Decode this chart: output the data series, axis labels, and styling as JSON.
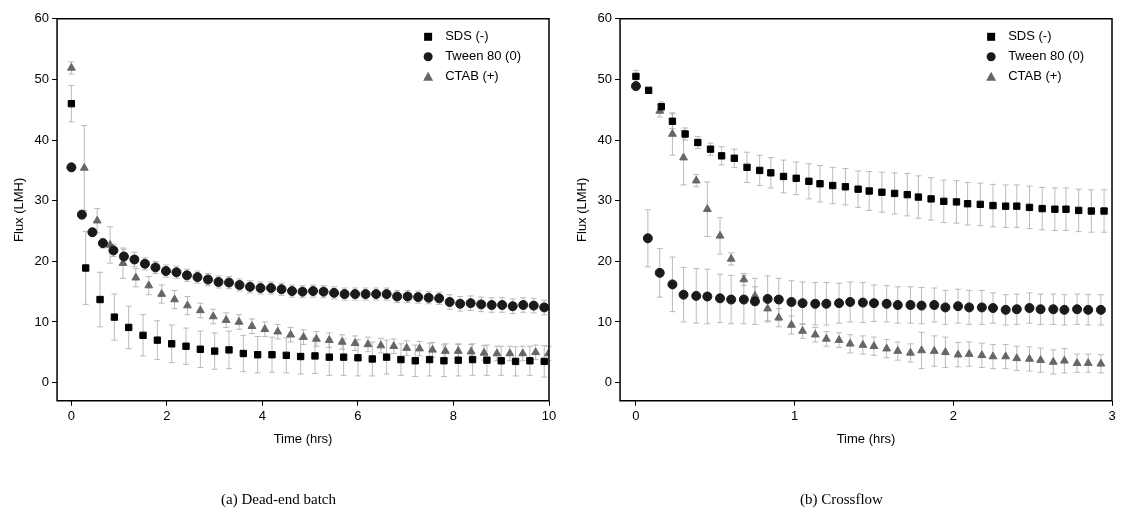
{
  "chart_data": [
    {
      "type": "scatter",
      "title": "(a) Dead-end batch",
      "xlabel": "Time (hrs)",
      "ylabel": "Flux (LMH)",
      "xlim": [
        -0.3,
        10
      ],
      "ylim": [
        -3,
        60
      ],
      "xticks": [
        0,
        2,
        4,
        6,
        8,
        10
      ],
      "yticks": [
        0,
        10,
        20,
        30,
        40,
        50,
        60
      ],
      "grid": false,
      "legend": "top right",
      "series": [
        {
          "name": "SDS (-)",
          "color": "#000000",
          "marker": "square",
          "x": [
            0,
            0.3,
            0.6,
            0.9,
            1.2,
            1.5,
            1.8,
            2.1,
            2.4,
            2.7,
            3,
            3.3,
            3.6,
            3.9,
            4.2,
            4.5,
            4.8,
            5.1,
            5.4,
            5.7,
            6,
            6.3,
            6.6,
            6.9,
            7.2,
            7.5,
            7.8,
            8.1,
            8.4,
            8.7,
            9,
            9.3,
            9.6,
            9.9
          ],
          "values": [
            46.0,
            18.9,
            13.7,
            10.8,
            9.1,
            7.8,
            7.0,
            6.4,
            6.0,
            5.5,
            5.2,
            5.4,
            4.8,
            4.6,
            4.6,
            4.5,
            4.3,
            4.4,
            4.2,
            4.2,
            4.1,
            3.9,
            4.2,
            3.8,
            3.6,
            3.8,
            3.6,
            3.7,
            3.8,
            3.7,
            3.6,
            3.5,
            3.6,
            3.5
          ],
          "errors": [
            3,
            6,
            4.5,
            3.8,
            3.5,
            3.4,
            3.2,
            3.1,
            3,
            3,
            3,
            3.1,
            3,
            3,
            2.9,
            2.9,
            2.9,
            2.9,
            3,
            3,
            3,
            2.8,
            2.8,
            2.6,
            2.6,
            2.7,
            2.6,
            2.6,
            2.6,
            2.5,
            2.4,
            2.4,
            2.4,
            2.6
          ]
        },
        {
          "name": "Tween 80 (0)",
          "color": "#1a1a1a",
          "marker": "circle",
          "x": [
            0,
            0.22,
            0.44,
            0.66,
            0.88,
            1.1,
            1.32,
            1.54,
            1.76,
            1.98,
            2.2,
            2.42,
            2.64,
            2.86,
            3.08,
            3.3,
            3.52,
            3.74,
            3.96,
            4.18,
            4.4,
            4.62,
            4.84,
            5.06,
            5.28,
            5.5,
            5.72,
            5.94,
            6.16,
            6.38,
            6.6,
            6.82,
            7.04,
            7.26,
            7.48,
            7.7,
            7.92,
            8.14,
            8.36,
            8.58,
            8.8,
            9.02,
            9.24,
            9.46,
            9.68,
            9.9
          ],
          "values": [
            35.5,
            27.7,
            24.8,
            23.0,
            21.8,
            20.8,
            20.3,
            19.6,
            19.0,
            18.4,
            18.2,
            17.7,
            17.4,
            17.0,
            16.6,
            16.5,
            16.1,
            15.8,
            15.6,
            15.6,
            15.4,
            15.1,
            15.0,
            15.1,
            15.0,
            14.8,
            14.6,
            14.6,
            14.6,
            14.6,
            14.6,
            14.2,
            14.2,
            14.1,
            14.0,
            13.9,
            13.3,
            13.0,
            13.1,
            12.9,
            12.8,
            12.8,
            12.6,
            12.8,
            12.7,
            12.4
          ],
          "errors": [
            0.6,
            0.6,
            0.6,
            0.8,
            1,
            1.2,
            1.2,
            1,
            1,
            1,
            1,
            1,
            1,
            1,
            1,
            1,
            1,
            1,
            1,
            1,
            1,
            1,
            1,
            1,
            1,
            1,
            1,
            1,
            1,
            1,
            1,
            1,
            1,
            1,
            1,
            1,
            1.2,
            1.2,
            1.2,
            1.2,
            1.2,
            1.2,
            1.2,
            1.2,
            1.2,
            1.2
          ]
        },
        {
          "name": "CTAB (+)",
          "color": "#666666",
          "marker": "triangle",
          "x": [
            0,
            0.27,
            0.54,
            0.81,
            1.08,
            1.35,
            1.62,
            1.89,
            2.16,
            2.43,
            2.7,
            2.97,
            3.24,
            3.51,
            3.78,
            4.05,
            4.32,
            4.59,
            4.86,
            5.13,
            5.4,
            5.67,
            5.94,
            6.21,
            6.48,
            6.75,
            7.02,
            7.29,
            7.56,
            7.83,
            8.1,
            8.37,
            8.64,
            8.91,
            9.18,
            9.45,
            9.72,
            9.99
          ],
          "values": [
            51.9,
            35.4,
            26.7,
            22.7,
            19.7,
            17.3,
            16.0,
            14.6,
            13.7,
            12.7,
            11.9,
            10.9,
            10.3,
            10.0,
            9.3,
            8.8,
            8.4,
            7.9,
            7.5,
            7.2,
            7.0,
            6.7,
            6.5,
            6.3,
            6.1,
            6.0,
            5.7,
            5.6,
            5.4,
            5.2,
            5.2,
            5.1,
            4.9,
            4.8,
            4.8,
            4.8,
            5.0,
            4.8
          ],
          "errors": [
            1,
            7,
            2,
            3,
            2.5,
            1.5,
            1.5,
            1.5,
            1.5,
            1.5,
            1.2,
            1.2,
            1.2,
            1.2,
            1.2,
            1.2,
            1.2,
            1.2,
            1.2,
            1.2,
            1.2,
            1.2,
            1.2,
            1.2,
            1.2,
            1.2,
            1.2,
            1.2,
            1.2,
            1.2,
            1.2,
            1.2,
            1.2,
            1.2,
            1.2,
            1.2,
            1.2,
            1.2
          ]
        }
      ]
    },
    {
      "type": "scatter",
      "title": "(b) Crossflow",
      "xlabel": "Time (hrs)",
      "ylabel": "Flux (LMH)",
      "xlim": [
        -0.1,
        3
      ],
      "ylim": [
        -3,
        60
      ],
      "xticks": [
        0,
        1,
        2,
        3
      ],
      "yticks": [
        0,
        10,
        20,
        30,
        40,
        50,
        60
      ],
      "grid": false,
      "legend": "top right",
      "series": [
        {
          "name": "SDS (-)",
          "color": "#000000",
          "marker": "square",
          "x": [
            0,
            0.08,
            0.16,
            0.23,
            0.31,
            0.39,
            0.47,
            0.54,
            0.62,
            0.7,
            0.78,
            0.85,
            0.93,
            1.01,
            1.09,
            1.16,
            1.24,
            1.32,
            1.4,
            1.47,
            1.55,
            1.63,
            1.71,
            1.78,
            1.86,
            1.94,
            2.02,
            2.09,
            2.17,
            2.25,
            2.33,
            2.4,
            2.48,
            2.56,
            2.64,
            2.71,
            2.79,
            2.87,
            2.95
          ],
          "values": [
            50.5,
            48.2,
            45.5,
            43.1,
            41.0,
            39.6,
            38.5,
            37.4,
            37.0,
            35.5,
            35.0,
            34.6,
            34.0,
            33.7,
            33.2,
            32.8,
            32.5,
            32.3,
            31.9,
            31.6,
            31.4,
            31.2,
            31.0,
            30.6,
            30.3,
            29.9,
            29.8,
            29.5,
            29.4,
            29.2,
            29.1,
            29.1,
            28.9,
            28.7,
            28.6,
            28.6,
            28.4,
            28.3,
            28.3
          ],
          "errors": [
            1,
            0.5,
            0.8,
            1.2,
            1,
            1,
            1,
            1.5,
            1.5,
            2.5,
            2.5,
            2.5,
            2.7,
            2.7,
            2.9,
            3,
            3,
            3,
            3,
            3.2,
            3.3,
            3.4,
            3.5,
            3.5,
            3.5,
            3.5,
            3.5,
            3.5,
            3.5,
            3.5,
            3.5,
            3.5,
            3.5,
            3.5,
            3.5,
            3.5,
            3.5,
            3.5,
            3.5
          ]
        },
        {
          "name": "Tween 80 (0)",
          "color": "#1a1a1a",
          "marker": "circle",
          "x": [
            0,
            0.075,
            0.15,
            0.23,
            0.3,
            0.38,
            0.45,
            0.53,
            0.6,
            0.68,
            0.75,
            0.83,
            0.9,
            0.98,
            1.05,
            1.13,
            1.2,
            1.28,
            1.35,
            1.43,
            1.5,
            1.58,
            1.65,
            1.73,
            1.8,
            1.88,
            1.95,
            2.03,
            2.1,
            2.18,
            2.25,
            2.33,
            2.4,
            2.48,
            2.55,
            2.63,
            2.7,
            2.78,
            2.85,
            2.93
          ],
          "values": [
            48.9,
            23.8,
            18.1,
            16.2,
            14.5,
            14.3,
            14.2,
            13.9,
            13.7,
            13.7,
            13.4,
            13.8,
            13.7,
            13.3,
            13.1,
            13.0,
            13.0,
            13.1,
            13.3,
            13.2,
            13.1,
            13.0,
            12.8,
            12.8,
            12.7,
            12.8,
            12.4,
            12.6,
            12.4,
            12.4,
            12.3,
            12.0,
            12.1,
            12.3,
            12.1,
            12.1,
            12.0,
            12.1,
            12.0,
            12.0
          ],
          "errors": [
            null,
            4.7,
            4,
            4.5,
            4.5,
            4.5,
            4.5,
            4,
            4,
            4,
            3.8,
            3.8,
            3.5,
            3.5,
            3.5,
            3.5,
            3.5,
            3.3,
            3.3,
            3.3,
            3,
            3,
            3,
            3,
            3,
            2.8,
            2.8,
            2.8,
            2.8,
            2.8,
            2.5,
            2.5,
            2.5,
            2.5,
            2.5,
            2.5,
            2.5,
            2.5,
            2.5,
            2.5
          ]
        },
        {
          "name": "CTAB (+)",
          "color": "#666666",
          "marker": "triangle",
          "x": [
            0.15,
            0.23,
            0.3,
            0.38,
            0.45,
            0.53,
            0.6,
            0.68,
            0.75,
            0.83,
            0.9,
            0.98,
            1.05,
            1.13,
            1.2,
            1.28,
            1.35,
            1.43,
            1.5,
            1.58,
            1.65,
            1.73,
            1.8,
            1.88,
            1.95,
            2.03,
            2.1,
            2.18,
            2.25,
            2.33,
            2.4,
            2.48,
            2.55,
            2.63,
            2.7,
            2.78,
            2.85,
            2.93
          ],
          "values": [
            44.8,
            41.0,
            37.1,
            33.3,
            28.6,
            24.2,
            20.4,
            17.0,
            14.3,
            12.2,
            10.7,
            9.5,
            8.5,
            7.9,
            7.2,
            7.0,
            6.4,
            6.2,
            6.0,
            5.6,
            5.2,
            4.9,
            5.3,
            5.2,
            5.0,
            4.6,
            4.7,
            4.5,
            4.3,
            4.3,
            4.0,
            3.9,
            3.7,
            3.4,
            3.6,
            3.2,
            3.2,
            3.1
          ],
          "errors": [
            1,
            3.5,
            4.5,
            1,
            4.5,
            3,
            1,
            1,
            1.5,
            2,
            1.5,
            1.5,
            1.2,
            1.2,
            1.2,
            1.2,
            1.5,
            1.5,
            1.5,
            1.5,
            1.5,
            1.5,
            3,
            2.5,
            2.5,
            2,
            2,
            2,
            2,
            2,
            2,
            2,
            2,
            2,
            2,
            1.5,
            1.5,
            1.5
          ]
        }
      ]
    }
  ]
}
